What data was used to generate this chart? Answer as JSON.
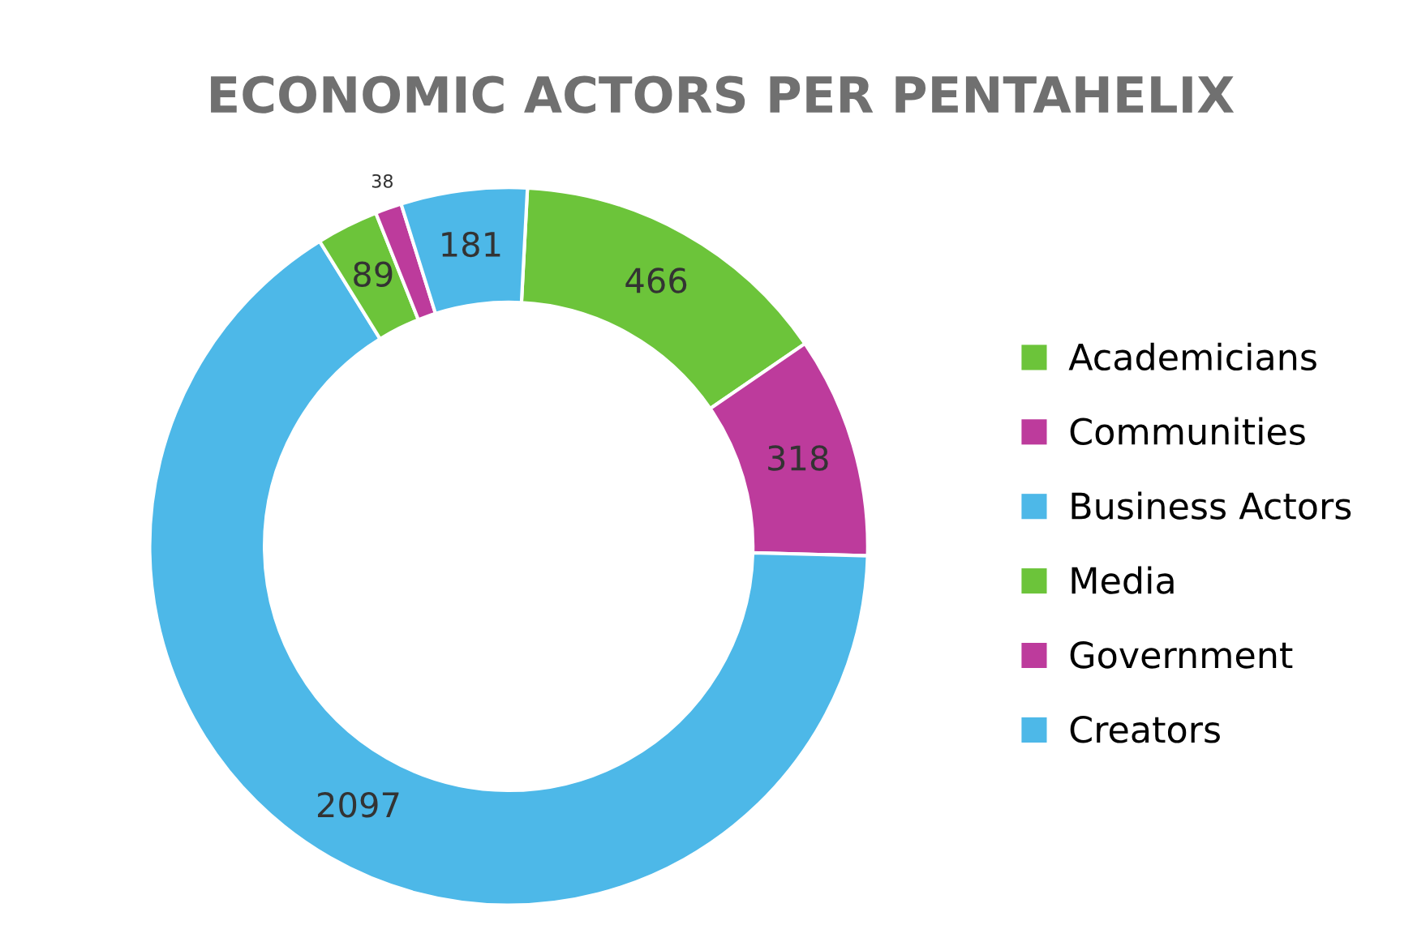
{
  "chart_data": {
    "type": "donut",
    "title": "ECONOMIC ACTORS PER PENTAHELIX",
    "categories": [
      "Academicians",
      "Communities",
      "Business Actors",
      "Media",
      "Government",
      "Creators"
    ],
    "values": [
      466,
      318,
      2097,
      89,
      38,
      181
    ],
    "colors": [
      "#6cc43a",
      "#bd3b9c",
      "#4db8e8",
      "#6cc43a",
      "#bd3b9c",
      "#4db8e8"
    ],
    "data_labels": true,
    "legend": "right"
  }
}
